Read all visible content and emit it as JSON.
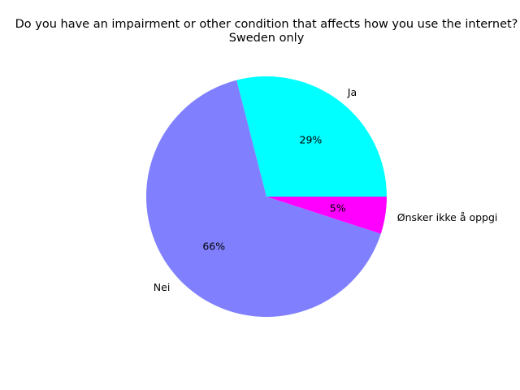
{
  "chart_data": {
    "type": "pie",
    "title": "Do you have an impairment or other condition that affects how you use the internet?",
    "subtitle": "Sweden only",
    "start_angle_deg": 0,
    "direction": "counterclockwise",
    "slices": [
      {
        "label": "Ja",
        "value": 29,
        "pct_label": "29%",
        "color": "#00ffff"
      },
      {
        "label": "Nei",
        "value": 66,
        "pct_label": "66%",
        "color": "#8080ff"
      },
      {
        "label": "Ønsker ikke å oppgi",
        "value": 5,
        "pct_label": "5%",
        "color": "#ff00ff"
      }
    ]
  }
}
